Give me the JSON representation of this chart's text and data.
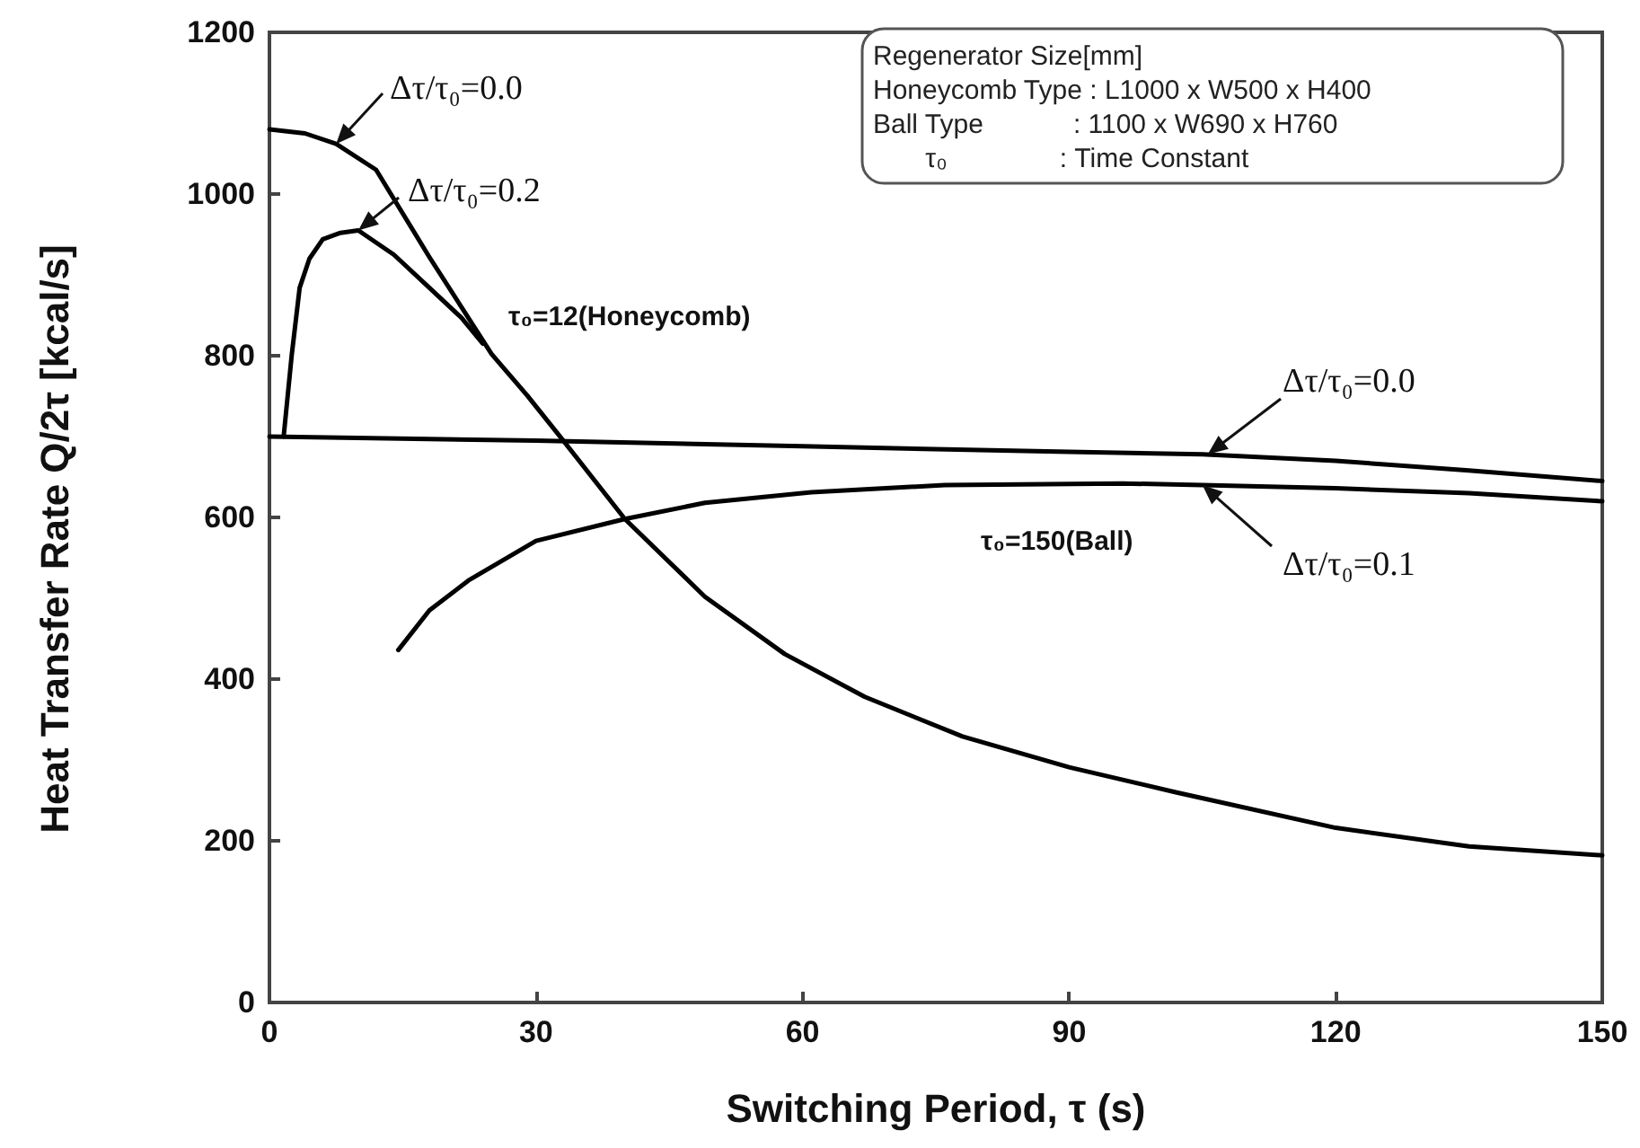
{
  "chart_data": {
    "type": "line",
    "xlabel": "Switching Period, τ (s)",
    "ylabel": "Heat Transfer Rate Q/2τ [kcal/s]",
    "xlim": [
      0,
      150
    ],
    "xticks": [
      0,
      30,
      60,
      90,
      120,
      150
    ],
    "ylim": [
      0,
      1200
    ],
    "yticks": [
      0,
      200,
      400,
      600,
      800,
      1000,
      1200
    ],
    "grid": false,
    "marker": "none",
    "line_style": "solid",
    "series": [
      {
        "color": "#000000",
        "x": [
          0,
          4,
          7.5,
          12,
          18,
          25,
          29,
          33,
          40,
          49,
          58,
          67,
          78,
          90,
          102,
          120,
          135,
          150
        ],
        "values": [
          1080,
          1075,
          1062,
          1030,
          922,
          802,
          751,
          696,
          598,
          502,
          431,
          378,
          329,
          291,
          260,
          216,
          193,
          182
        ]
      },
      {
        "color": "#000000",
        "x": [
          1.6,
          2.5,
          3.4,
          4.5,
          6,
          8,
          10,
          14,
          18,
          21.6,
          24
        ],
        "values": [
          700,
          800,
          884,
          920,
          944,
          952,
          955,
          925,
          884,
          847,
          815
        ]
      },
      {
        "color": "#000000",
        "x": [
          0,
          30,
          60,
          90,
          105,
          120,
          135,
          150
        ],
        "values": [
          700,
          695,
          688,
          681,
          678,
          670,
          658,
          645
        ]
      },
      {
        "color": "#000000",
        "x": [
          14.5,
          18,
          22.4,
          30,
          40,
          49,
          61,
          76,
          96,
          105,
          120,
          135,
          150
        ],
        "values": [
          436,
          485,
          522,
          571,
          598,
          618,
          631,
          640,
          642,
          640,
          636,
          630,
          620
        ]
      }
    ],
    "annotations": [
      {
        "text": "Δτ/τ₀=0.0",
        "x": 7.5,
        "y": 1062
      },
      {
        "text": "Δτ/τ₀=0.2",
        "x": 10,
        "y": 955
      },
      "τ₀=12(Honeycomb)",
      {
        "text": "Δτ/τ₀=0.0",
        "x": 105.6,
        "y": 678
      },
      "τ₀=150(Ball)",
      {
        "text": "Δτ/τ₀=0.1",
        "x": 105,
        "y": 640
      },
      "Regenerator Size[mm]\nHoneycomb Type : L1000 x W500 x H400\nBall Type            : 1100 x W690 x H760\n       τ₀               : Time Constant"
    ]
  }
}
